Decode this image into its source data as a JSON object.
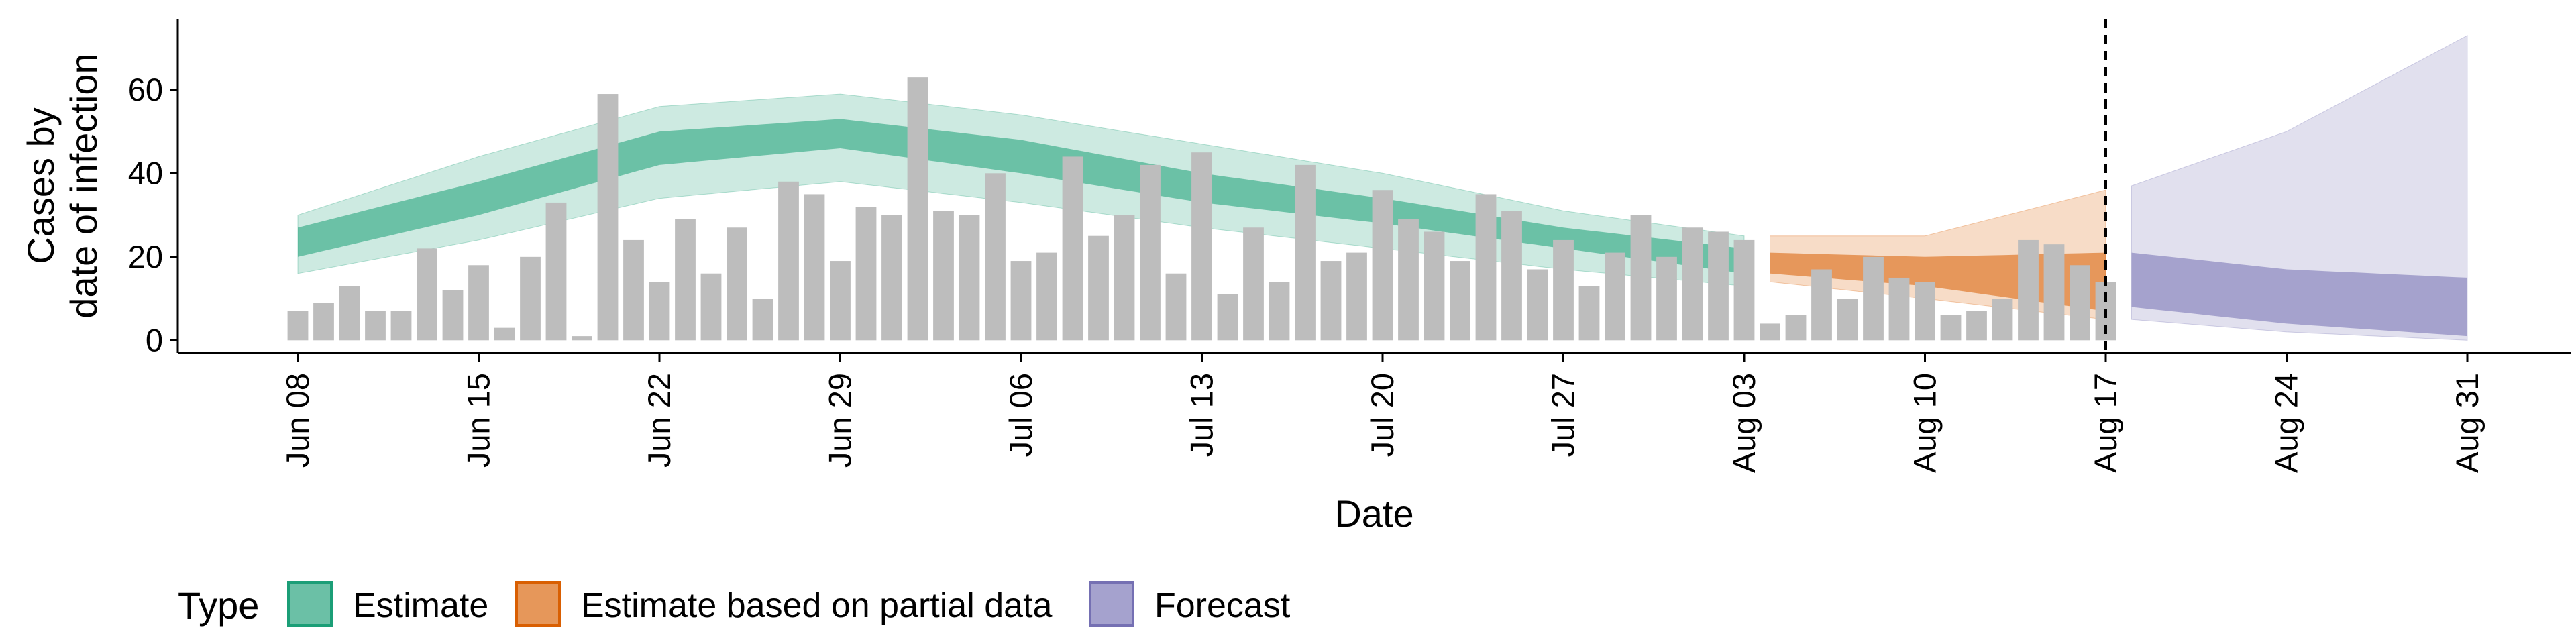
{
  "chart_data": {
    "type": "bar",
    "title": "",
    "xlabel": "Date",
    "ylabel": "Cases by\ndate of infection",
    "x_axis_kind": "date",
    "x_ticks": [
      "Jun 08",
      "Jun 15",
      "Jun 22",
      "Jun 29",
      "Jul 06",
      "Jul 13",
      "Jul 20",
      "Jul 27",
      "Aug 03",
      "Aug 10",
      "Aug 17",
      "Aug 24",
      "Aug 31"
    ],
    "y_ticks": [
      0,
      20,
      40,
      60
    ],
    "xlim": [
      "2020-06-02",
      "2020-09-05"
    ],
    "ylim": [
      -3,
      77
    ],
    "grid": false,
    "legend_position": "bottom",
    "legend": {
      "title": "Type",
      "items": [
        "Estimate",
        "Estimate based on partial data",
        "Forecast"
      ]
    },
    "colors": {
      "bars": "#bdbdbd",
      "Estimate": "#1b9e77",
      "Estimate based on partial data": "#d95f02",
      "Forecast": "#7570b3",
      "vline": "#000000"
    },
    "vline": {
      "date": "Aug 17",
      "style": "dashed"
    },
    "reported_cases": {
      "start": "Jun 08",
      "values": [
        7,
        9,
        13,
        7,
        7,
        22,
        12,
        18,
        3,
        20,
        33,
        1,
        59,
        24,
        14,
        29,
        16,
        27,
        10,
        38,
        35,
        19,
        32,
        30,
        63,
        31,
        30,
        40,
        19,
        21,
        44,
        25,
        30,
        42,
        16,
        45,
        11,
        27,
        14,
        42,
        19,
        21,
        36,
        29,
        26,
        19,
        35,
        31,
        17,
        24,
        13,
        21,
        30,
        20,
        27,
        26,
        24,
        4,
        6,
        17,
        10,
        20,
        15,
        14,
        6,
        7,
        10,
        24,
        23,
        18,
        14
      ]
    },
    "series": [
      {
        "name": "Estimate",
        "x_start": "Jun 08",
        "x_end": "Aug 03",
        "x_keys": [
          "Jun 08",
          "Jun 15",
          "Jun 22",
          "Jun 29",
          "Jul 06",
          "Jul 13",
          "Jul 20",
          "Jul 27",
          "Aug 03"
        ],
        "median": [
          23,
          33,
          45,
          50,
          44,
          36,
          31,
          25,
          19
        ],
        "inner_lower": [
          20,
          30,
          42,
          46,
          40,
          33,
          28,
          22,
          16
        ],
        "inner_upper": [
          27,
          38,
          50,
          53,
          48,
          40,
          34,
          27,
          22
        ],
        "outer_lower": [
          16,
          24,
          34,
          38,
          33,
          27,
          22,
          17,
          13
        ],
        "outer_upper": [
          30,
          44,
          56,
          59,
          54,
          47,
          40,
          31,
          25
        ]
      },
      {
        "name": "Estimate based on partial data",
        "x_start": "Aug 04",
        "x_end": "Aug 17",
        "x_keys": [
          "Aug 04",
          "Aug 10",
          "Aug 17"
        ],
        "median": [
          20,
          17,
          12
        ],
        "inner_lower": [
          16,
          13,
          7
        ],
        "inner_upper": [
          21,
          20,
          21
        ],
        "outer_lower": [
          14,
          10,
          5
        ],
        "outer_upper": [
          25,
          25,
          36
        ]
      },
      {
        "name": "Forecast",
        "x_start": "Aug 18",
        "x_end": "Aug 31",
        "x_keys": [
          "Aug 18",
          "Aug 24",
          "Aug 31"
        ],
        "median": [
          14,
          10,
          8
        ],
        "inner_lower": [
          8,
          4,
          1
        ],
        "inner_upper": [
          21,
          17,
          15
        ],
        "outer_lower": [
          5,
          2,
          0
        ],
        "outer_upper": [
          37,
          50,
          73
        ]
      }
    ]
  }
}
